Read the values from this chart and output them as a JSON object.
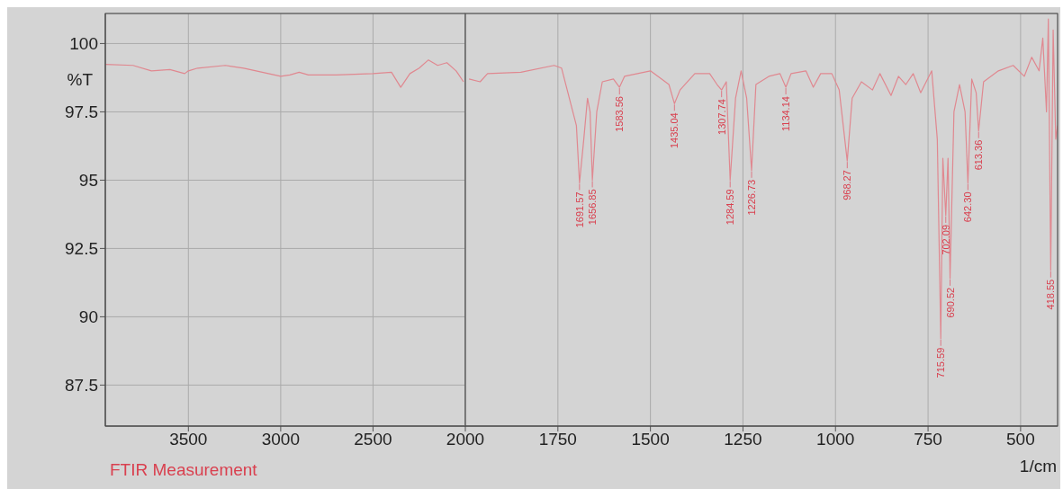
{
  "chart_data": [
    {
      "type": "line",
      "ylabel": "%T",
      "xlim": [
        3950,
        2000
      ],
      "xticks": [
        3500,
        3000,
        2500
      ],
      "ylim": [
        86,
        101.1
      ],
      "yticks": [
        100,
        97.5,
        95,
        92.5,
        90,
        87.5
      ],
      "grid": true,
      "x": [
        3950,
        3800,
        3700,
        3600,
        3520,
        3500,
        3450,
        3300,
        3200,
        3100,
        3000,
        2950,
        2900,
        2850,
        2700,
        2500,
        2400,
        2350,
        2300,
        2250,
        2200,
        2150,
        2100,
        2050,
        2010
      ],
      "series": [
        {
          "color": "#e08890",
          "values": [
            99.24,
            99.2,
            99.0,
            99.05,
            98.9,
            99.0,
            99.1,
            99.2,
            99.1,
            98.95,
            98.8,
            98.85,
            98.95,
            98.85,
            98.85,
            98.9,
            98.95,
            98.4,
            98.9,
            99.1,
            99.4,
            99.2,
            99.3,
            99.0,
            98.6
          ]
        }
      ],
      "annotations": [
        "FTIR Measurement"
      ]
    },
    {
      "type": "line",
      "xlabel": "1/cm",
      "xlim": [
        2000,
        400
      ],
      "xticks": [
        2000,
        1750,
        1500,
        1250,
        1000,
        750,
        500
      ],
      "ylim": [
        86,
        101.1
      ],
      "yticks": [
        100,
        97.5,
        95,
        92.5,
        90,
        87.5
      ],
      "grid": true,
      "tick_labels": "x",
      "x": [
        1990,
        1960,
        1940,
        1850,
        1760,
        1740,
        1700,
        1691.57,
        1680,
        1670,
        1663,
        1656.85,
        1645,
        1630,
        1600,
        1583.56,
        1570,
        1500,
        1450,
        1435.04,
        1420,
        1380,
        1340,
        1320,
        1307.74,
        1295,
        1284.59,
        1270,
        1255,
        1240,
        1226.73,
        1215,
        1180,
        1150,
        1134.14,
        1120,
        1080,
        1060,
        1040,
        1010,
        990,
        968.27,
        955,
        930,
        900,
        880,
        850,
        830,
        810,
        790,
        770,
        740,
        725,
        715.59,
        710,
        702.09,
        696,
        690.52,
        680,
        665,
        650,
        642.3,
        632,
        620,
        613.36,
        600,
        560,
        520,
        490,
        470,
        450,
        440,
        430,
        425,
        418.55,
        412,
        405,
        400
      ],
      "series": [
        {
          "color": "#e08890",
          "values": [
            98.7,
            98.6,
            98.9,
            98.95,
            99.2,
            99.1,
            97.0,
            94.9,
            96.5,
            98.0,
            97.5,
            95.0,
            97.5,
            98.6,
            98.7,
            98.4,
            98.8,
            99.0,
            98.5,
            97.8,
            98.3,
            98.9,
            98.9,
            98.5,
            98.3,
            98.6,
            95.0,
            98.0,
            99.0,
            98.0,
            95.35,
            98.5,
            98.8,
            98.9,
            98.4,
            98.9,
            99.0,
            98.4,
            98.9,
            98.9,
            98.3,
            95.7,
            98.0,
            98.6,
            98.3,
            98.9,
            98.1,
            98.8,
            98.5,
            98.9,
            98.2,
            99.0,
            96.5,
            89.2,
            95.8,
            93.7,
            95.8,
            91.4,
            97.5,
            98.5,
            97.5,
            94.9,
            98.7,
            98.2,
            96.8,
            98.6,
            99.0,
            99.2,
            98.8,
            99.5,
            99.0,
            100.2,
            97.5,
            100.9,
            91.7,
            100.5,
            96.5,
            97.0
          ]
        }
      ],
      "annotations": [
        {
          "text": "1691.57",
          "x": 1691.57,
          "y": 94.9
        },
        {
          "text": "1656.85",
          "x": 1656.85,
          "y": 95.0
        },
        {
          "text": "1583.56",
          "x": 1583.56,
          "y": 98.4
        },
        {
          "text": "1435.04",
          "x": 1435.04,
          "y": 97.8
        },
        {
          "text": "1307.74",
          "x": 1307.74,
          "y": 98.3
        },
        {
          "text": "1284.59",
          "x": 1284.59,
          "y": 95.0
        },
        {
          "text": "1226.73",
          "x": 1226.73,
          "y": 95.35
        },
        {
          "text": "1134.14",
          "x": 1134.14,
          "y": 98.4
        },
        {
          "text": "968.27",
          "x": 968.27,
          "y": 95.7
        },
        {
          "text": "715.59",
          "x": 715.59,
          "y": 89.2
        },
        {
          "text": "702.09",
          "x": 702.09,
          "y": 93.7
        },
        {
          "text": "690.52",
          "x": 690.52,
          "y": 91.4
        },
        {
          "text": "642.30",
          "x": 642.3,
          "y": 94.9
        },
        {
          "text": "613.36",
          "x": 613.36,
          "y": 96.8
        },
        {
          "text": "418.55",
          "x": 418.55,
          "y": 91.7
        }
      ]
    }
  ]
}
